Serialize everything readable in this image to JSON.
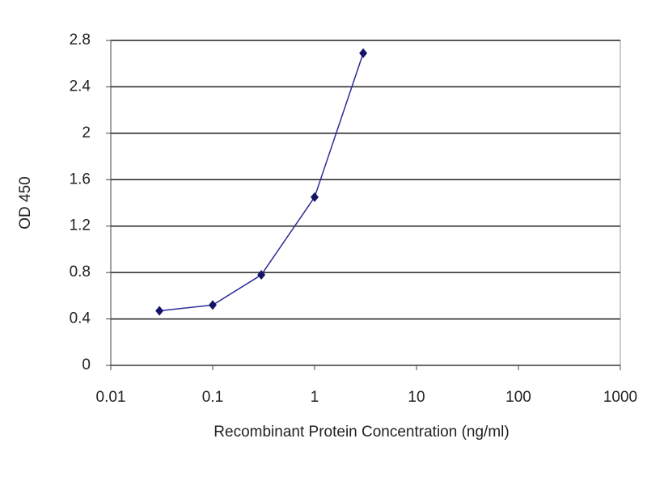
{
  "chart_data": {
    "type": "line",
    "x_label": "Recombinant Protein Concentration (ng/ml)",
    "y_label": "OD 450",
    "x": [
      0.03,
      0.1,
      0.3,
      1,
      3
    ],
    "series": [
      {
        "name": null,
        "color": "#2b2b9a",
        "marker_color": "#141466",
        "values": [
          0.47,
          0.52,
          0.78,
          1.45,
          2.69
        ]
      }
    ],
    "xscale": "log",
    "xlim": [
      0.01,
      1000
    ],
    "xticks": [
      0.01,
      0.1,
      1,
      10,
      100,
      1000
    ],
    "ylim": [
      0,
      2.8
    ],
    "yticks": [
      0,
      0.4,
      0.8,
      1.2,
      1.6,
      2,
      2.4,
      2.8
    ],
    "grid": true
  }
}
